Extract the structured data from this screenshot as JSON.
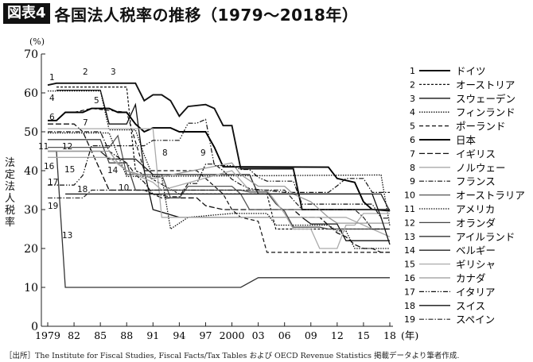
{
  "title": {
    "badge": "図表4",
    "text": "各国法人税率の推移（1979〜2018年）"
  },
  "source": "［出所］The Institute for Fiscal Studies, Fiscal Facts/Tax Tables および OECD Revenue Statistics 掲載データより筆者作成.",
  "chart_data": {
    "type": "line",
    "ylabel": "法定法人税率",
    "yunit": "(%)",
    "xunit": "(年)",
    "ylim": [
      0,
      70
    ],
    "xlim": [
      1979,
      2018
    ],
    "yticks": [
      0,
      10,
      20,
      30,
      40,
      50,
      60,
      70
    ],
    "xticks": [
      1979,
      1982,
      1985,
      1988,
      1991,
      1994,
      1997,
      2000,
      2003,
      2006,
      2009,
      2012,
      2015,
      2018
    ],
    "xtick_labels": [
      "1979",
      "82",
      "85",
      "88",
      "91",
      "94",
      "97",
      "2000",
      "03",
      "06",
      "09",
      "12",
      "15",
      "18"
    ],
    "grid": false,
    "legend_placement": "right",
    "series": [
      {
        "id": "1",
        "name": "ドイツ",
        "style": "solid-thick",
        "color": "#111111",
        "points": [
          [
            1979,
            62
          ],
          [
            1980,
            62.5
          ],
          [
            1989,
            62.5
          ],
          [
            1990,
            58
          ],
          [
            1991,
            59.5
          ],
          [
            1992,
            59.5
          ],
          [
            1993,
            58
          ],
          [
            1994,
            54
          ],
          [
            1995,
            56.5
          ],
          [
            1997,
            57
          ],
          [
            1998,
            56
          ],
          [
            1999,
            51.6
          ],
          [
            2000,
            51.6
          ],
          [
            2001,
            40.5
          ],
          [
            2007,
            40.5
          ],
          [
            2008,
            30
          ],
          [
            2018,
            30
          ]
        ]
      },
      {
        "id": "2",
        "name": "オーストリア",
        "style": "dashed-fine",
        "color": "#111111",
        "points": [
          [
            1980,
            61.5
          ],
          [
            1988,
            61.5
          ],
          [
            1989,
            40
          ],
          [
            1990,
            39
          ],
          [
            1994,
            34
          ],
          [
            2004,
            34
          ],
          [
            2005,
            25
          ],
          [
            2018,
            25
          ]
        ]
      },
      {
        "id": "3",
        "name": "スウェーデン",
        "style": "solid",
        "color": "#111111",
        "points": [
          [
            1980,
            60.7
          ],
          [
            1985,
            60.7
          ],
          [
            1986,
            52
          ],
          [
            1988,
            52
          ],
          [
            1989,
            57
          ],
          [
            1990,
            40
          ],
          [
            1991,
            30
          ],
          [
            1994,
            28
          ],
          [
            2008,
            28
          ],
          [
            2009,
            26.3
          ],
          [
            2012,
            26.3
          ],
          [
            2013,
            22
          ],
          [
            2018,
            22
          ]
        ]
      },
      {
        "id": "4",
        "name": "フィンランド",
        "style": "dotted",
        "color": "#111111",
        "points": [
          [
            1979,
            60.5
          ],
          [
            1985,
            60.5
          ],
          [
            1986,
            50.5
          ],
          [
            1989,
            50.5
          ],
          [
            1990,
            44
          ],
          [
            1991,
            38.5
          ],
          [
            1992,
            38.5
          ],
          [
            1993,
            25
          ],
          [
            1995,
            28
          ],
          [
            2000,
            29
          ],
          [
            2004,
            29
          ],
          [
            2005,
            26
          ],
          [
            2011,
            26
          ],
          [
            2012,
            24.5
          ],
          [
            2013,
            24.5
          ],
          [
            2014,
            20
          ],
          [
            2018,
            20
          ]
        ]
      },
      {
        "id": "5",
        "name": "ポーランド",
        "style": "dashed",
        "color": "#111111",
        "points": [
          [
            1982,
            55
          ],
          [
            1984,
            56
          ],
          [
            1988,
            55
          ],
          [
            1990,
            40
          ],
          [
            1996,
            40
          ],
          [
            1997,
            38
          ],
          [
            1998,
            36
          ],
          [
            1999,
            34
          ],
          [
            2000,
            30
          ],
          [
            2001,
            28
          ],
          [
            2003,
            27
          ],
          [
            2004,
            19
          ],
          [
            2018,
            19
          ]
        ]
      },
      {
        "id": "6",
        "name": "日本",
        "style": "solid-thick",
        "color": "#000000",
        "points": [
          [
            1979,
            52.9
          ],
          [
            1980,
            52.9
          ],
          [
            1981,
            55
          ],
          [
            1983,
            55
          ],
          [
            1984,
            56
          ],
          [
            1986,
            56
          ],
          [
            1987,
            55
          ],
          [
            1988,
            55
          ],
          [
            1989,
            52
          ],
          [
            1990,
            50
          ],
          [
            1991,
            51
          ],
          [
            1993,
            51
          ],
          [
            1994,
            50
          ],
          [
            1997,
            50
          ],
          [
            1998,
            46
          ],
          [
            1999,
            41
          ],
          [
            2011,
            40.9
          ],
          [
            2012,
            38
          ],
          [
            2014,
            37
          ],
          [
            2015,
            32
          ],
          [
            2016,
            30
          ],
          [
            2018,
            29.7
          ]
        ]
      },
      {
        "id": "7",
        "name": "イギリス",
        "style": "dashed-long",
        "color": "#111111",
        "points": [
          [
            1979,
            52
          ],
          [
            1982,
            52
          ],
          [
            1983,
            50
          ],
          [
            1984,
            45
          ],
          [
            1985,
            40
          ],
          [
            1986,
            35
          ],
          [
            1990,
            35
          ],
          [
            1991,
            34
          ],
          [
            1992,
            33
          ],
          [
            1996,
            33
          ],
          [
            1997,
            31
          ],
          [
            1999,
            30
          ],
          [
            2007,
            30
          ],
          [
            2008,
            28
          ],
          [
            2010,
            28
          ],
          [
            2011,
            26
          ],
          [
            2012,
            24
          ],
          [
            2013,
            23
          ],
          [
            2014,
            21
          ],
          [
            2015,
            20
          ],
          [
            2016,
            20
          ],
          [
            2017,
            19
          ],
          [
            2018,
            19
          ]
        ]
      },
      {
        "id": "8",
        "name": "ノルウェー",
        "style": "solid",
        "color": "#aaaaaa",
        "points": [
          [
            1979,
            50.8
          ],
          [
            1991,
            50.8
          ],
          [
            1992,
            28
          ],
          [
            2013,
            28
          ],
          [
            2014,
            27
          ],
          [
            2016,
            25
          ],
          [
            2017,
            24
          ],
          [
            2018,
            23
          ]
        ]
      },
      {
        "id": "9",
        "name": "フランス",
        "style": "dashdot",
        "color": "#111111",
        "points": [
          [
            1979,
            50
          ],
          [
            1985,
            50
          ],
          [
            1986,
            45
          ],
          [
            1988,
            42
          ],
          [
            1989,
            39
          ],
          [
            1990,
            37
          ],
          [
            1991,
            34
          ],
          [
            1993,
            33.3
          ],
          [
            1994,
            33.3
          ],
          [
            1995,
            36.7
          ],
          [
            1996,
            36.7
          ],
          [
            1997,
            41.7
          ],
          [
            1998,
            41.7
          ],
          [
            1999,
            40
          ],
          [
            2000,
            37.8
          ],
          [
            2001,
            36.4
          ],
          [
            2002,
            35.4
          ],
          [
            2006,
            34.4
          ],
          [
            2011,
            34.4
          ],
          [
            2012,
            36.1
          ],
          [
            2013,
            38
          ],
          [
            2015,
            38
          ],
          [
            2016,
            34.4
          ],
          [
            2018,
            34.4
          ]
        ]
      },
      {
        "id": "10",
        "name": "オーストラリア",
        "style": "solid",
        "color": "#555555",
        "points": [
          [
            1979,
            46
          ],
          [
            1986,
            46
          ],
          [
            1987,
            49
          ],
          [
            1988,
            39
          ],
          [
            1992,
            39
          ],
          [
            1993,
            33
          ],
          [
            1994,
            33
          ],
          [
            1995,
            36
          ],
          [
            2000,
            36
          ],
          [
            2001,
            34
          ],
          [
            2002,
            30
          ],
          [
            2018,
            30
          ]
        ]
      },
      {
        "id": "11",
        "name": "アメリカ",
        "style": "dotted",
        "color": "#111111",
        "points": [
          [
            1979,
            49.7
          ],
          [
            1986,
            49.7
          ],
          [
            1987,
            44
          ],
          [
            1988,
            38.5
          ],
          [
            2017,
            38.9
          ],
          [
            2018,
            25.8
          ]
        ]
      },
      {
        "id": "12",
        "name": "オランダ",
        "style": "solid",
        "color": "#444444",
        "points": [
          [
            1979,
            48
          ],
          [
            1985,
            48
          ],
          [
            1986,
            42
          ],
          [
            1988,
            42
          ],
          [
            1989,
            35
          ],
          [
            2001,
            35
          ],
          [
            2002,
            34.5
          ],
          [
            2004,
            34.5
          ],
          [
            2005,
            31.5
          ],
          [
            2006,
            29.6
          ],
          [
            2007,
            25.5
          ],
          [
            2010,
            25.5
          ],
          [
            2011,
            25
          ],
          [
            2018,
            25
          ]
        ]
      },
      {
        "id": "13",
        "name": "アイルランド",
        "style": "solid",
        "color": "#333333",
        "points": [
          [
            1979,
            45
          ],
          [
            1980,
            45
          ],
          [
            1981,
            10
          ],
          [
            2001,
            10
          ],
          [
            2003,
            12.5
          ],
          [
            2018,
            12.5
          ]
        ]
      },
      {
        "id": "14",
        "name": "ベルギー",
        "style": "solid",
        "color": "#222222",
        "points": [
          [
            1979,
            45
          ],
          [
            1985,
            45
          ],
          [
            1986,
            43
          ],
          [
            1989,
            43
          ],
          [
            1990,
            41
          ],
          [
            1991,
            39
          ],
          [
            2002,
            39
          ],
          [
            2003,
            34
          ],
          [
            2017,
            34
          ],
          [
            2018,
            29.6
          ]
        ]
      },
      {
        "id": "15",
        "name": "ギリシャ",
        "style": "solid",
        "color": "#aaaaaa",
        "points": [
          [
            1979,
            43.4
          ],
          [
            1986,
            43.4
          ],
          [
            1988,
            40
          ],
          [
            1991,
            37
          ],
          [
            1992,
            35
          ],
          [
            2000,
            40
          ],
          [
            2001,
            37.5
          ],
          [
            2002,
            35
          ],
          [
            2004,
            35
          ],
          [
            2005,
            32
          ],
          [
            2006,
            29
          ],
          [
            2007,
            25
          ],
          [
            2009,
            25
          ],
          [
            2010,
            20
          ],
          [
            2011,
            20
          ],
          [
            2012,
            20
          ],
          [
            2013,
            26
          ],
          [
            2014,
            26
          ],
          [
            2015,
            29
          ],
          [
            2018,
            29
          ]
        ]
      },
      {
        "id": "16",
        "name": "カナダ",
        "style": "solid",
        "color": "#999999",
        "points": [
          [
            1979,
            45
          ],
          [
            1986,
            45
          ],
          [
            1987,
            42
          ],
          [
            1988,
            40
          ],
          [
            1991,
            38
          ],
          [
            2000,
            42
          ],
          [
            2001,
            39
          ],
          [
            2003,
            36
          ],
          [
            2006,
            36
          ],
          [
            2007,
            34
          ],
          [
            2008,
            33
          ],
          [
            2009,
            32
          ],
          [
            2010,
            30
          ],
          [
            2011,
            28
          ],
          [
            2012,
            26.5
          ],
          [
            2018,
            26.5
          ]
        ]
      },
      {
        "id": "17",
        "name": "イタリア",
        "style": "dashdotdot",
        "color": "#111111",
        "points": [
          [
            1979,
            36.3
          ],
          [
            1982,
            36.3
          ],
          [
            1983,
            38.8
          ],
          [
            1984,
            46.4
          ],
          [
            1990,
            46.4
          ],
          [
            1991,
            47.8
          ],
          [
            1994,
            47.8
          ],
          [
            1995,
            52.2
          ],
          [
            1996,
            52.2
          ],
          [
            1997,
            53.2
          ],
          [
            1998,
            41.3
          ],
          [
            2000,
            41.3
          ],
          [
            2001,
            40.3
          ],
          [
            2002,
            40.3
          ],
          [
            2003,
            38.3
          ],
          [
            2004,
            37.3
          ],
          [
            2007,
            37.3
          ],
          [
            2008,
            31.4
          ],
          [
            2016,
            31.4
          ],
          [
            2017,
            27.8
          ],
          [
            2018,
            27.8
          ]
        ]
      },
      {
        "id": "18",
        "name": "スイス",
        "style": "solid",
        "color": "#111111",
        "points": [
          [
            1981,
            34
          ],
          [
            2016,
            34
          ],
          [
            2017,
            28
          ],
          [
            2018,
            21
          ]
        ]
      },
      {
        "id": "19",
        "name": "スペイン",
        "style": "dashdot",
        "color": "#222222",
        "points": [
          [
            1979,
            33
          ],
          [
            1983,
            33
          ],
          [
            1984,
            35
          ],
          [
            2006,
            35
          ],
          [
            2007,
            32.5
          ],
          [
            2008,
            30
          ],
          [
            2014,
            30
          ],
          [
            2015,
            28
          ],
          [
            2016,
            25
          ],
          [
            2018,
            25
          ]
        ]
      }
    ]
  }
}
